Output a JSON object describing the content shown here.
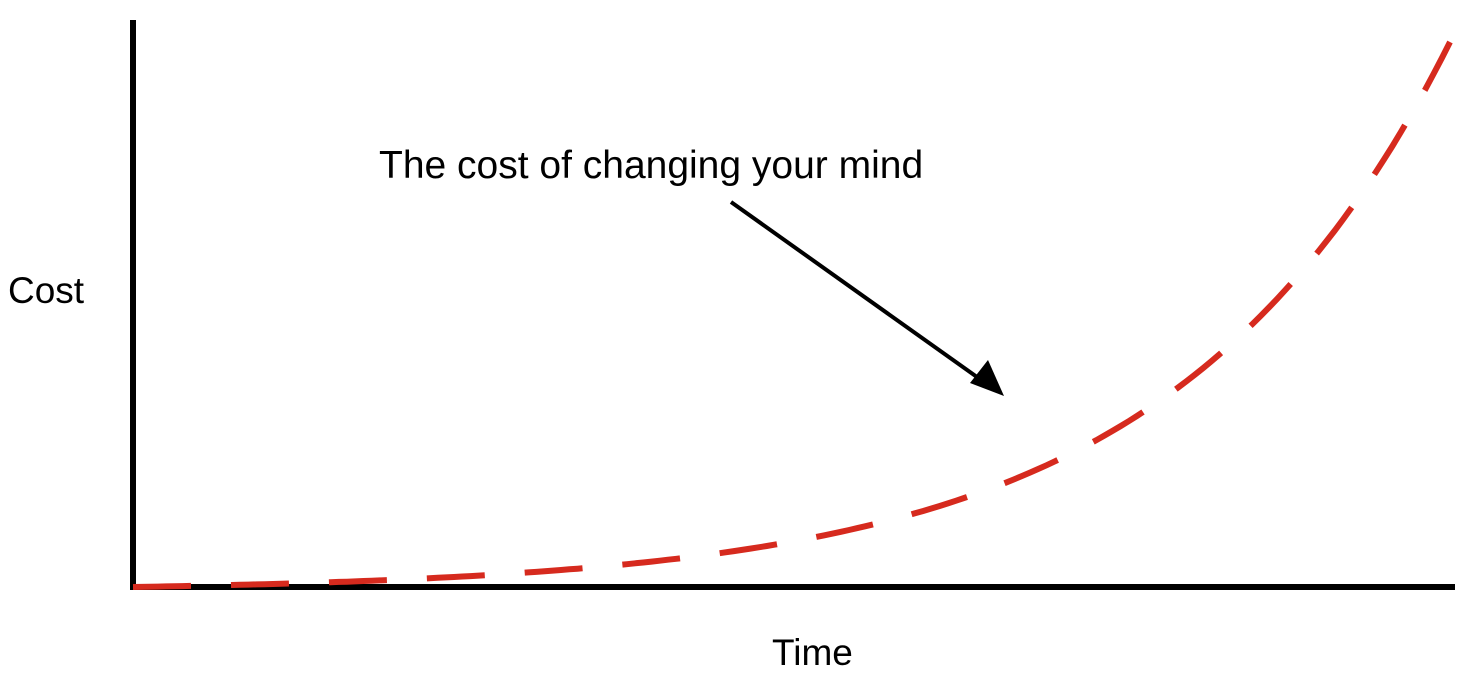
{
  "chart_data": {
    "type": "line",
    "title": "",
    "xlabel": "Time",
    "ylabel": "Cost",
    "x_ticks_shown": false,
    "y_ticks_shown": false,
    "grid": false,
    "legend": "none",
    "series": [
      {
        "line_style": "dashed",
        "color": "#d62a1e",
        "shape": "exponential"
      }
    ],
    "annotations": [
      {
        "text": "The cost of changing your mind",
        "arrow_color": "#000000"
      }
    ]
  },
  "colors": {
    "axis": "#000000",
    "curve": "#d62a1e",
    "arrow": "#000000",
    "background": "#ffffff"
  }
}
